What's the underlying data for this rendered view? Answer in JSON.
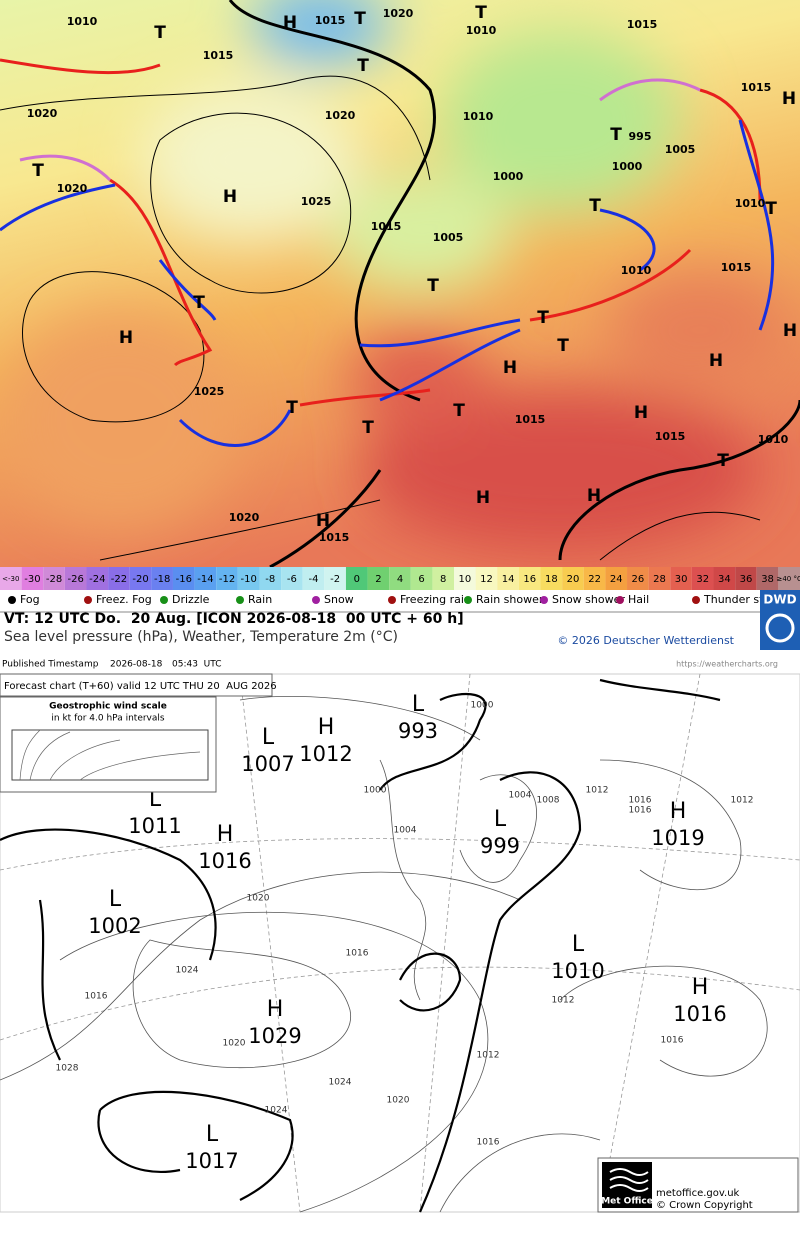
{
  "dwd": {
    "map_labels": [
      "1010",
      "1015",
      "1020",
      "1020",
      "1020",
      "1010",
      "1025",
      "1015",
      "1005",
      "1000",
      "995",
      "1000",
      "1005",
      "1010",
      "1015",
      "1015",
      "1010",
      "1025",
      "1015",
      "1015",
      "1010",
      "1020",
      "1015",
      "1020",
      "1015",
      "1010",
      "1015",
      "H",
      "H",
      "H",
      "H",
      "H",
      "H",
      "H",
      "H",
      "H",
      "H",
      "H",
      "T",
      "T",
      "T",
      "T",
      "T",
      "T",
      "T",
      "T",
      "T",
      "T",
      "T",
      "T",
      "T",
      "T",
      "T",
      "T"
    ],
    "scale": {
      "low_label": "<-30",
      "low_color": "#e8a8e8",
      "values": [
        -30,
        -28,
        -26,
        -24,
        -22,
        -20,
        -18,
        -16,
        -14,
        -12,
        -10,
        -8,
        -6,
        -4,
        -2,
        0,
        2,
        4,
        6,
        8,
        10,
        12,
        14,
        16,
        18,
        20,
        22,
        24,
        26,
        28,
        30,
        32,
        34,
        36,
        38
      ],
      "colors": [
        "#e07ee0",
        "#d08ad8",
        "#b878d8",
        "#a070e0",
        "#8a6ee8",
        "#7878f0",
        "#6a80f0",
        "#5a8ef0",
        "#5aa0f0",
        "#64b4f0",
        "#78c8f0",
        "#90d8f0",
        "#a8e4f0",
        "#c0eef0",
        "#d0f4f0",
        "#50c878",
        "#70d070",
        "#90dc80",
        "#b0e890",
        "#d0f0a0",
        "#f4fadc",
        "#f8f8c0",
        "#f8f0a0",
        "#f8e880",
        "#f8dc60",
        "#f8cc50",
        "#f8b848",
        "#f4a040",
        "#f08c48",
        "#ec7850",
        "#e46050",
        "#dc5050",
        "#d04848",
        "#c04848",
        "#b06868"
      ],
      "high_label": "≥40 °C",
      "high_color": "#b89090"
    },
    "legend": [
      "Fog",
      "Freez. Fog",
      "Drizzle",
      "Rain",
      "Snow",
      "Freezing rain",
      "Rain shower",
      "Snow shower",
      "Hail",
      "Thunder storm"
    ],
    "valid_time": "VT: 12 UTC Do.  20 Aug. [ICON 2026-08-18  00 UTC + 60 h]",
    "subtitle": "Sea level pressure (hPa), Weather, Temperature 2m (°C)",
    "copyright": "© 2026 Deutscher Wetterdienst",
    "logo": "DWD"
  },
  "metoffice": {
    "timestamp_label": "Published Timestamp",
    "date": "2026-08-18",
    "time": "05:43  UTC",
    "url": "https://weathercharts.org",
    "caption": "Forecast chart (T+60) valid 12 UTC THU 20  AUG 2026",
    "wind_scale_title": "Geostrophic wind scale",
    "wind_scale_subtitle": "in kt for 4.0 hPa intervals",
    "systems": [
      {
        "type": "L",
        "pressure": 1007
      },
      {
        "type": "H",
        "pressure": 1012
      },
      {
        "type": "L",
        "pressure": 993
      },
      {
        "type": "L",
        "pressure": 1011
      },
      {
        "type": "H",
        "pressure": 1016
      },
      {
        "type": "L",
        "pressure": 999
      },
      {
        "type": "H",
        "pressure": 1019
      },
      {
        "type": "L",
        "pressure": 1002
      },
      {
        "type": "L",
        "pressure": 1010
      },
      {
        "type": "H",
        "pressure": 1029
      },
      {
        "type": "H",
        "pressure": 1016
      },
      {
        "type": "L",
        "pressure": 1017
      }
    ],
    "isobar_labels": [
      1000,
      1004,
      1004,
      1008,
      1012,
      1016,
      1012,
      1020,
      1016,
      1024,
      1016,
      1028,
      1012,
      1016,
      1024,
      1020,
      1016,
      1020,
      1024,
      1016,
      1012,
      1000
    ],
    "logo": "Met Office",
    "site": "metoffice.gov.uk",
    "copyright": "© Crown Copyright"
  }
}
